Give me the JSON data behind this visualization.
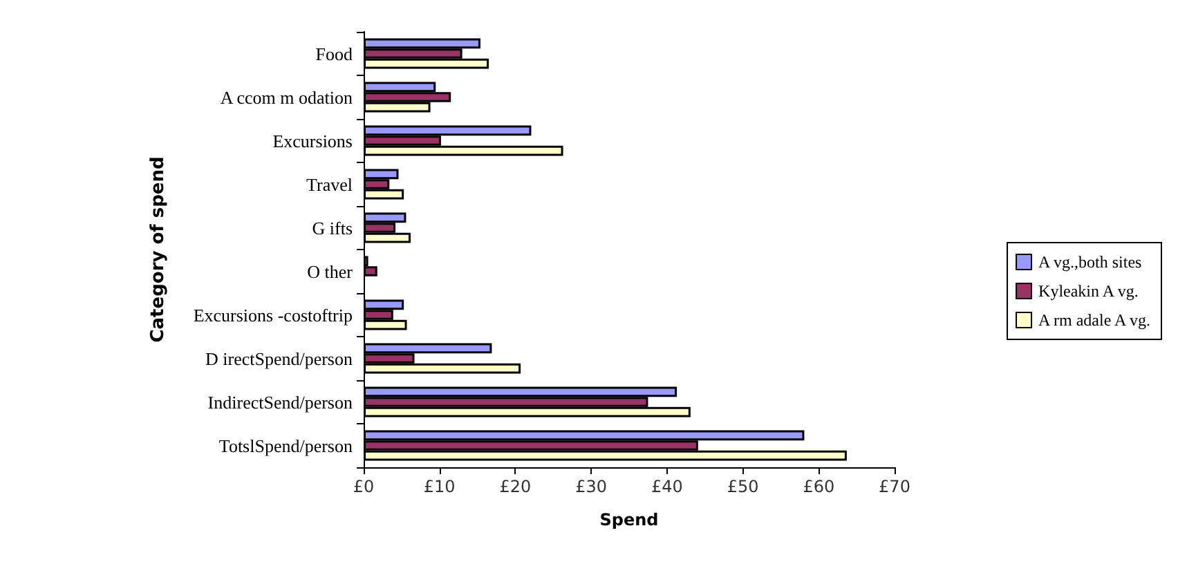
{
  "chart_data": {
    "type": "bar",
    "orientation": "horizontal",
    "xlabel": "Spend",
    "ylabel": "Category of spend",
    "categories": [
      "Food",
      "A ccom m odation",
      "Excursions",
      "Travel",
      "G ifts",
      "O ther",
      "Excursions -costoftrip",
      "D irectSpend/person",
      "IndirectSend/person",
      "TotslSpend/person"
    ],
    "series": [
      {
        "name": "A vg.,both sites",
        "color": "#9999ff",
        "values": [
          15.4,
          9.5,
          22.1,
          4.6,
          5.6,
          0.6,
          5.3,
          16.9,
          41.3,
          58.1
        ]
      },
      {
        "name": "Kyleakin A vg.",
        "color": "#993366",
        "values": [
          13.0,
          11.5,
          10.2,
          3.4,
          4.2,
          1.8,
          3.9,
          6.7,
          37.5,
          44.1
        ]
      },
      {
        "name": "A rm adale A vg.",
        "color": "#ffffcc",
        "values": [
          16.5,
          8.8,
          26.3,
          5.3,
          6.2,
          null,
          5.7,
          20.7,
          43.1,
          63.7
        ]
      }
    ],
    "xlim": [
      0,
      70
    ],
    "xticks": [
      {
        "value": 0,
        "label": "£0"
      },
      {
        "value": 10,
        "label": "£10"
      },
      {
        "value": 20,
        "label": "£20"
      },
      {
        "value": 30,
        "label": "£30"
      },
      {
        "value": 40,
        "label": "£40"
      },
      {
        "value": 50,
        "label": "£50"
      },
      {
        "value": 60,
        "label": "£60"
      },
      {
        "value": 70,
        "label": "£70"
      }
    ],
    "grid": false,
    "legend": "right"
  }
}
